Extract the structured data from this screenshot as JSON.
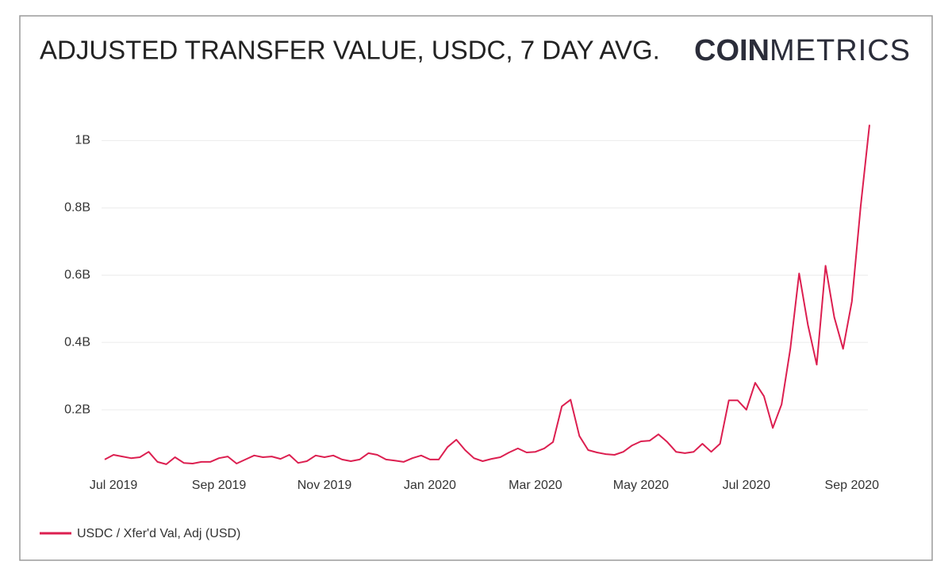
{
  "chart_data": {
    "type": "line",
    "title": "ADJUSTED TRANSFER VALUE, USDC, 7 DAY AVG.",
    "logo_bold": "COIN",
    "logo_light": "METRICS",
    "categories": [
      null,
      "Jul 2019",
      null,
      null,
      null,
      null,
      null,
      null,
      null,
      null,
      null,
      null,
      null,
      "Sep 2019",
      null,
      null,
      null,
      null,
      null,
      null,
      null,
      null,
      null,
      null,
      null,
      "Nov 2019",
      null,
      null,
      null,
      null,
      null,
      null,
      null,
      null,
      null,
      null,
      null,
      "Jan 2020",
      null,
      null,
      null,
      null,
      null,
      null,
      null,
      null,
      null,
      null,
      null,
      "Mar 2020",
      null,
      null,
      null,
      null,
      null,
      null,
      null,
      null,
      null,
      null,
      null,
      "May 2020",
      null,
      null,
      null,
      null,
      null,
      null,
      null,
      null,
      null,
      null,
      null,
      "Jul 2020",
      null,
      null,
      null,
      null,
      null,
      null,
      null,
      null,
      null,
      null,
      null,
      "Sep 2020",
      null,
      null
    ],
    "series": [
      {
        "name": "USDC / Xfer'd Val, Adj (USD)",
        "color": "#dc1f50",
        "values": [
          52000000,
          66000000,
          61000000,
          56000000,
          59000000,
          75000000,
          45000000,
          38000000,
          59000000,
          42000000,
          40000000,
          45000000,
          45000000,
          56000000,
          61000000,
          40000000,
          52000000,
          64000000,
          59000000,
          61000000,
          54000000,
          66000000,
          42000000,
          47000000,
          64000000,
          59000000,
          64000000,
          52000000,
          47000000,
          52000000,
          71000000,
          66000000,
          52000000,
          49000000,
          45000000,
          56000000,
          64000000,
          52000000,
          52000000,
          89000000,
          111000000,
          80000000,
          56000000,
          47000000,
          54000000,
          59000000,
          73000000,
          85000000,
          73000000,
          75000000,
          85000000,
          104000000,
          210000000,
          230000000,
          122000000,
          80000000,
          73000000,
          68000000,
          66000000,
          75000000,
          94000000,
          106000000,
          108000000,
          127000000,
          104000000,
          75000000,
          71000000,
          75000000,
          99000000,
          75000000,
          99000000,
          228000000,
          228000000,
          200000000,
          280000000,
          240000000,
          146000000,
          216000000,
          381000000,
          605000000,
          452000000,
          334000000,
          628000000,
          475000000,
          381000000,
          522000000,
          805000000,
          1047000000
        ]
      }
    ],
    "ylim": [
      0,
      1100000000
    ],
    "yticks": [
      {
        "value": 200000000,
        "label": "0.2B"
      },
      {
        "value": 400000000,
        "label": "0.4B"
      },
      {
        "value": 600000000,
        "label": "0.6B"
      },
      {
        "value": 800000000,
        "label": "0.8B"
      },
      {
        "value": 1000000000,
        "label": "1B"
      }
    ],
    "grid": true
  }
}
